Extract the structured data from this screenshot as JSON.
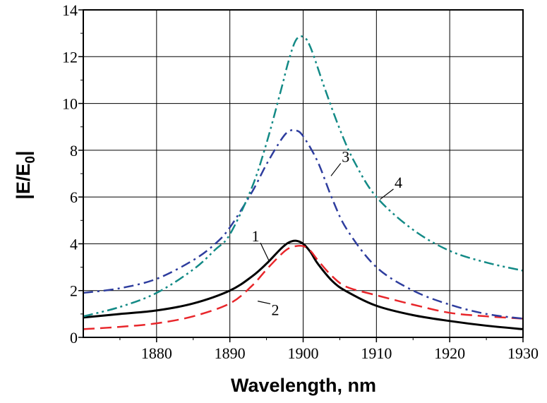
{
  "chart_data": {
    "type": "line",
    "title": "",
    "xlabel": "Wavelength,  nm",
    "ylabel_main": "|E/E",
    "ylabel_sub": "0",
    "ylabel_end": "|",
    "xlim": [
      1870,
      1930
    ],
    "ylim": [
      0,
      14
    ],
    "xticks": [
      1880,
      1890,
      1900,
      1910,
      1920,
      1930
    ],
    "yticks": [
      0,
      2,
      4,
      6,
      8,
      10,
      12,
      14
    ],
    "grid": true,
    "colors": {
      "curve1": "#000000",
      "curve2": "#e8262b",
      "curve3": "#2e3d9e",
      "curve4": "#138a86"
    },
    "series": [
      {
        "label": "1",
        "style": "solid",
        "color": "#000000",
        "label_pos": [
          1893.5,
          4.1
        ],
        "leader_to": [
          1895.3,
          3.3
        ],
        "x": [
          1870,
          1875,
          1880,
          1885,
          1890,
          1893,
          1895,
          1897,
          1898,
          1899,
          1900,
          1901,
          1902,
          1904,
          1906,
          1910,
          1915,
          1920,
          1925,
          1930
        ],
        "y": [
          0.85,
          1.0,
          1.15,
          1.45,
          2.0,
          2.6,
          3.15,
          3.8,
          4.05,
          4.13,
          4.0,
          3.65,
          3.15,
          2.4,
          1.95,
          1.35,
          0.95,
          0.7,
          0.5,
          0.35
        ]
      },
      {
        "label": "2",
        "style": "dashed",
        "color": "#e8262b",
        "label_pos": [
          1896.2,
          0.95
        ],
        "leader_to": [
          1893.8,
          1.55
        ],
        "x": [
          1870,
          1875,
          1880,
          1885,
          1890,
          1893,
          1895,
          1897,
          1898,
          1899,
          1900,
          1901,
          1902,
          1904,
          1906,
          1910,
          1915,
          1920,
          1925,
          1930
        ],
        "y": [
          0.35,
          0.45,
          0.6,
          0.9,
          1.45,
          2.2,
          2.9,
          3.55,
          3.8,
          3.9,
          3.9,
          3.7,
          3.3,
          2.6,
          2.15,
          1.8,
          1.4,
          1.05,
          0.9,
          0.8
        ]
      },
      {
        "label": "3",
        "style": "dash-dot",
        "color": "#2e3d9e",
        "label_pos": [
          1905.8,
          7.5
        ],
        "leader_to": [
          1903.8,
          6.9
        ],
        "x": [
          1870,
          1875,
          1880,
          1885,
          1888,
          1890,
          1893,
          1895,
          1897,
          1898,
          1899,
          1900,
          1902,
          1904,
          1906,
          1910,
          1915,
          1920,
          1925,
          1930
        ],
        "y": [
          1.9,
          2.1,
          2.5,
          3.3,
          4.0,
          4.7,
          6.2,
          7.4,
          8.45,
          8.8,
          8.85,
          8.6,
          7.5,
          5.9,
          4.6,
          3.0,
          2.0,
          1.4,
          1.0,
          0.8
        ]
      },
      {
        "label": "4",
        "style": "dash-dot-dot",
        "color": "#138a86",
        "label_pos": [
          1913.0,
          6.4
        ],
        "leader_to": [
          1910.5,
          5.9
        ],
        "x": [
          1870,
          1875,
          1880,
          1885,
          1888,
          1890,
          1893,
          1895,
          1897,
          1898,
          1899,
          1900,
          1901,
          1903,
          1905,
          1907,
          1910,
          1915,
          1920,
          1925,
          1930
        ],
        "y": [
          0.9,
          1.3,
          1.9,
          2.9,
          3.75,
          4.4,
          6.4,
          8.3,
          10.6,
          11.8,
          12.7,
          12.85,
          12.4,
          10.6,
          8.9,
          7.5,
          6.0,
          4.6,
          3.7,
          3.2,
          2.85
        ]
      }
    ]
  }
}
